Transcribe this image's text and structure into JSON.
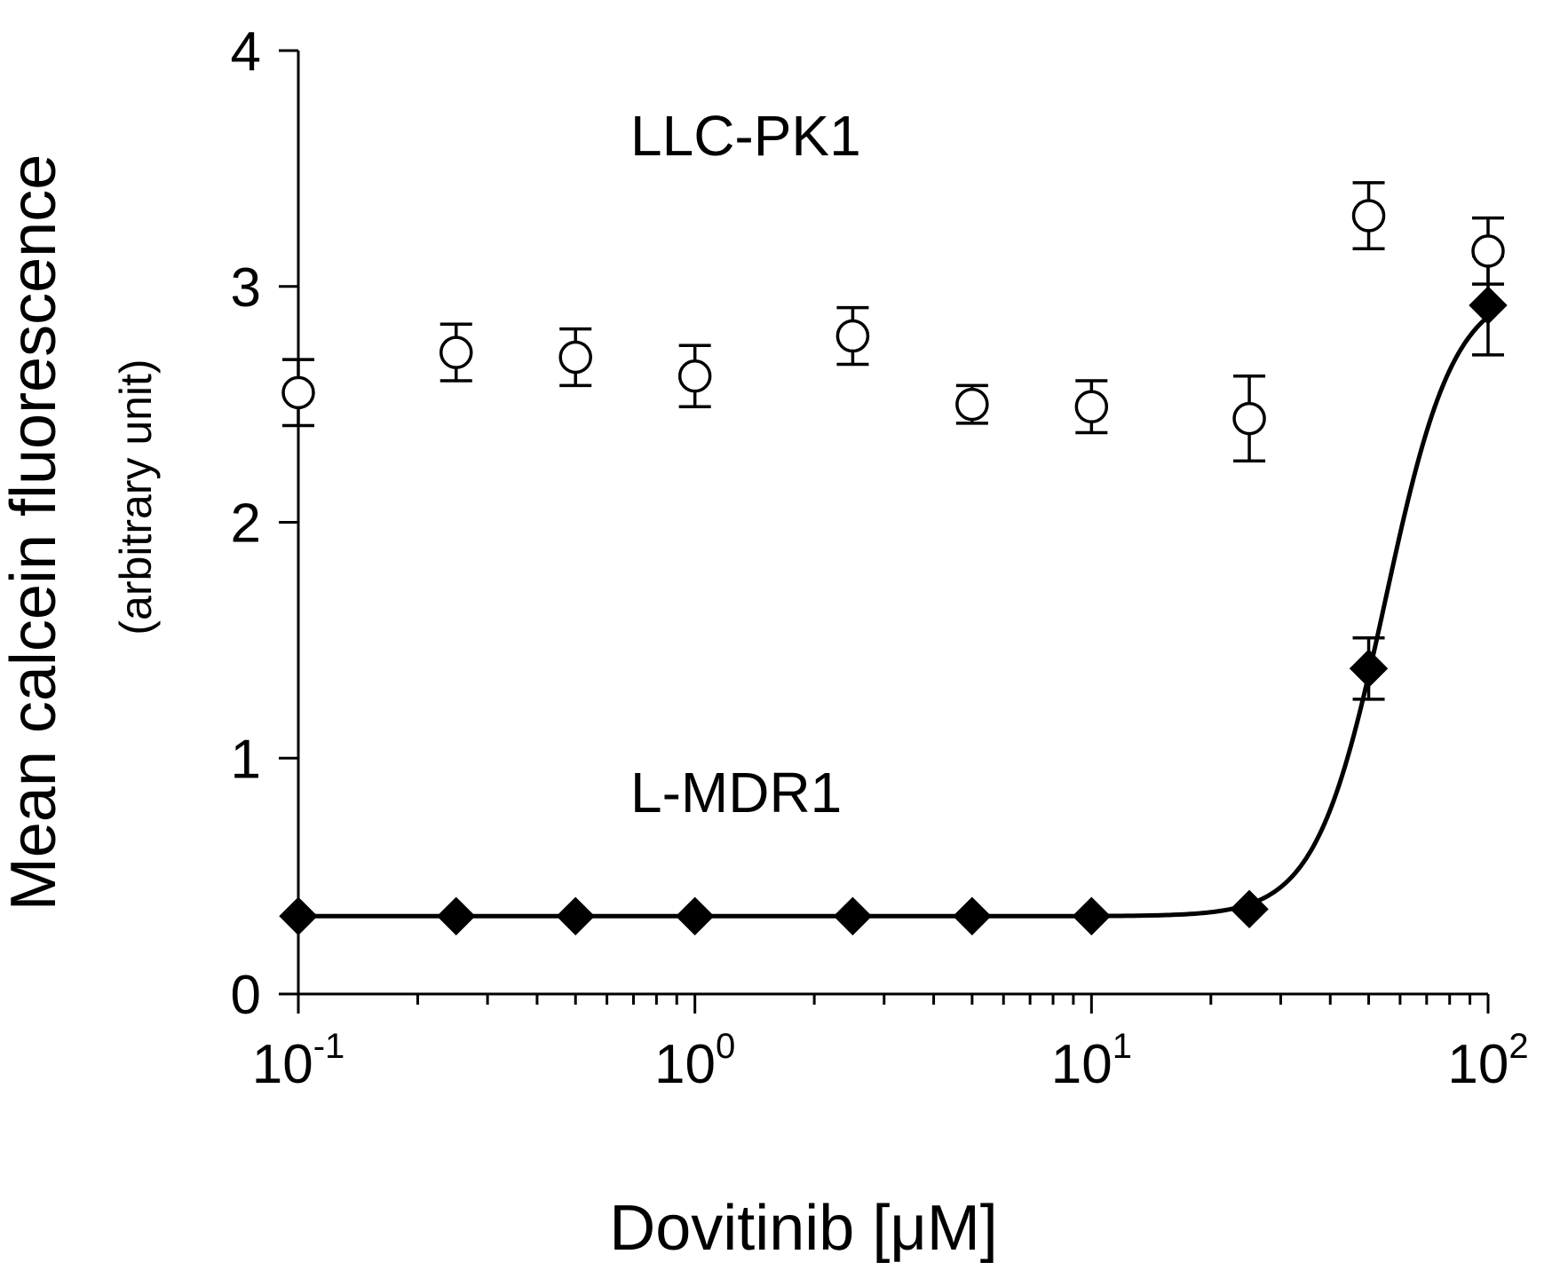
{
  "chart_data": {
    "type": "scatter",
    "title": "",
    "xlabel": "Dovitinib [μM]",
    "ylabel": "Mean calcein fluorescence",
    "ylabel_sub": "(arbitrary unit)",
    "xscale": "log",
    "xlim": [
      0.1,
      100
    ],
    "ylim": [
      0,
      4
    ],
    "x_ticks": [
      {
        "base": "10",
        "exp": "-1",
        "value": 0.1
      },
      {
        "base": "10",
        "exp": "0",
        "value": 1
      },
      {
        "base": "10",
        "exp": "1",
        "value": 10
      },
      {
        "base": "10",
        "exp": "2",
        "value": 100
      }
    ],
    "y_ticks": [
      "0",
      "1",
      "2",
      "3",
      "4"
    ],
    "grid": false,
    "series": [
      {
        "name": "LLC-PK1",
        "marker": "open-circle",
        "x": [
          0.1,
          0.25,
          0.5,
          1,
          2.5,
          5,
          10,
          25,
          50,
          100
        ],
        "y": [
          2.55,
          2.72,
          2.7,
          2.62,
          2.79,
          2.5,
          2.49,
          2.44,
          3.3,
          3.15
        ],
        "err": [
          0.14,
          0.12,
          0.12,
          0.13,
          0.12,
          0.08,
          0.11,
          0.18,
          0.14,
          0.14
        ]
      },
      {
        "name": "L-MDR1",
        "marker": "filled-diamond",
        "x": [
          0.1,
          0.25,
          0.5,
          1,
          2.5,
          5,
          10,
          25,
          50,
          100
        ],
        "y": [
          0.33,
          0.33,
          0.33,
          0.33,
          0.33,
          0.33,
          0.33,
          0.36,
          1.38,
          2.92
        ],
        "err": [
          0,
          0,
          0,
          0,
          0,
          0,
          0,
          0,
          0.13,
          0.21
        ],
        "fit": {
          "bottom": 0.33,
          "top": 3.0,
          "ec50": 55,
          "hill": 5
        }
      }
    ]
  }
}
